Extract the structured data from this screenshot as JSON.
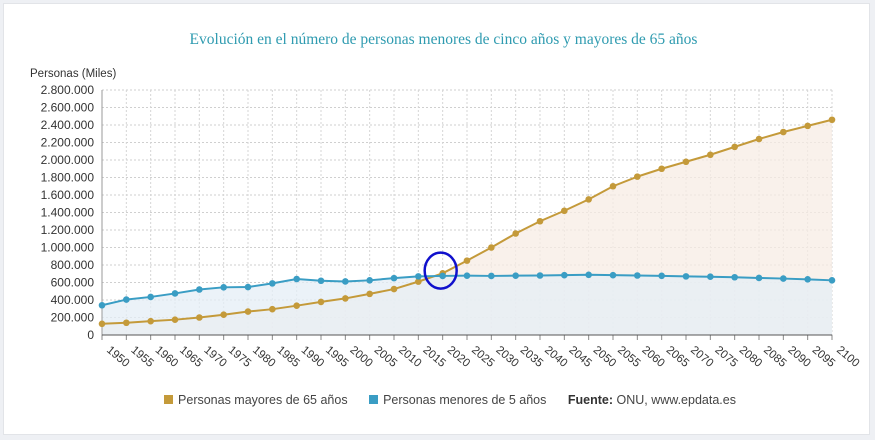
{
  "chart_data": {
    "type": "line",
    "title": "Evolución en el número de personas menores de cinco años y mayores de 65 años",
    "ylabel": "Personas (Miles)",
    "xlabel": "",
    "ylim": [
      0,
      2800000
    ],
    "yticks": [
      "0",
      "200.000",
      "400.000",
      "600.000",
      "800.000",
      "1.000.000",
      "1.200.000",
      "1.400.000",
      "1.600.000",
      "1.800.000",
      "2.000.000",
      "2.200.000",
      "2.400.000",
      "2.600.000",
      "2.800.000"
    ],
    "categories": [
      "1950",
      "1955",
      "1960",
      "1965",
      "1970",
      "1975",
      "1980",
      "1985",
      "1990",
      "1995",
      "2000",
      "2005",
      "2010",
      "2015",
      "2020",
      "2025",
      "2030",
      "2035",
      "2040",
      "2045",
      "2050",
      "2055",
      "2060",
      "2065",
      "2070",
      "2075",
      "2080",
      "2085",
      "2090",
      "2095",
      "2100"
    ],
    "grid": true,
    "legend_position": "bottom-center",
    "series": [
      {
        "name": "Personas mayores de 65 años",
        "color": "#c49a3a",
        "fill": "#f7ece4",
        "values": [
          128000,
          140000,
          158000,
          175000,
          200000,
          232000,
          268000,
          295000,
          335000,
          378000,
          418000,
          470000,
          525000,
          610000,
          705000,
          850000,
          1000000,
          1160000,
          1300000,
          1420000,
          1550000,
          1700000,
          1810000,
          1900000,
          1980000,
          2060000,
          2150000,
          2240000,
          2320000,
          2390000,
          2460000
        ]
      },
      {
        "name": "Personas menores de 5 años",
        "color": "#3a9dc4",
        "fill": "#e4eef5",
        "values": [
          340000,
          405000,
          435000,
          475000,
          520000,
          545000,
          548000,
          590000,
          640000,
          620000,
          612000,
          625000,
          650000,
          670000,
          675000,
          678000,
          675000,
          678000,
          680000,
          684000,
          688000,
          684000,
          680000,
          676000,
          670000,
          666000,
          660000,
          652000,
          645000,
          636000,
          625000
        ]
      }
    ],
    "annotation": {
      "type": "circle",
      "color": "#1010cc",
      "x": "2020",
      "y": 690000
    },
    "source_label": "Fuente:",
    "source_text": "ONU, www.epdata.es"
  }
}
